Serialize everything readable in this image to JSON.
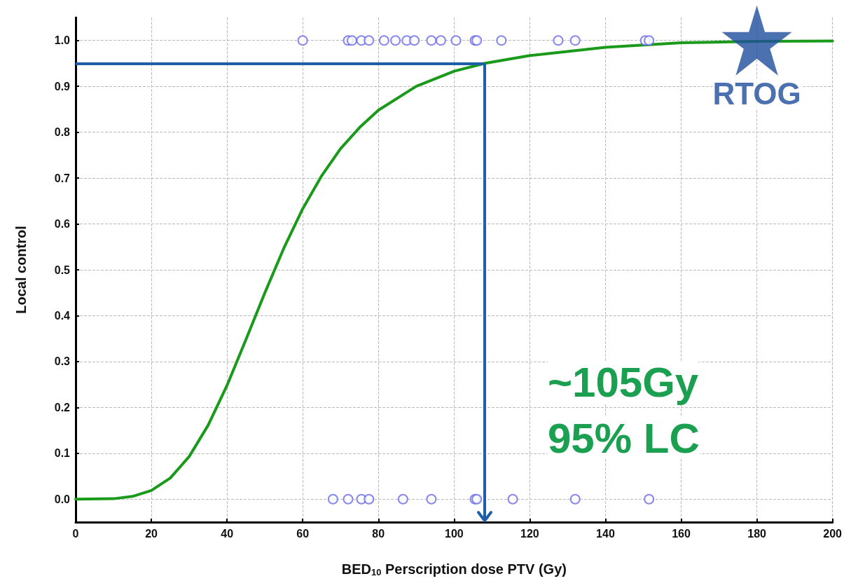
{
  "chart_data": {
    "type": "line",
    "xlabel": "BED$_{10}$ Perscription dose PTV (Gy)",
    "ylabel": "Local control",
    "xlim": [
      0,
      200
    ],
    "xticks": [
      0,
      20,
      40,
      60,
      80,
      100,
      120,
      140,
      160,
      180,
      200
    ],
    "ylim": [
      -0.05,
      1.05
    ],
    "yticks": [
      {
        "value": 0,
        "label": "0.0"
      },
      0.1,
      0.2,
      0.3,
      0.4,
      0.5,
      0.6,
      0.7,
      0.8,
      0.9,
      {
        "value": 1,
        "label": "1.0"
      }
    ],
    "grid": true,
    "legend": false,
    "series": [
      {
        "color": "#1a9a1a",
        "marker": "none",
        "line_style": "solid",
        "x": [
          0,
          10,
          15,
          20,
          25,
          30,
          35,
          40,
          45,
          50,
          55,
          60,
          65,
          70,
          75,
          80,
          90,
          100,
          108,
          120,
          140,
          160,
          180,
          200
        ],
        "values": [
          0,
          0.001,
          0.006,
          0.019,
          0.046,
          0.093,
          0.161,
          0.248,
          0.348,
          0.45,
          0.547,
          0.633,
          0.705,
          0.764,
          0.81,
          0.848,
          0.9,
          0.933,
          0.95,
          0.967,
          0.985,
          0.995,
          0.998,
          0.999
        ]
      },
      {
        "type": "scatter",
        "color": "#6a6ae8",
        "marker": "circle",
        "x": [
          60,
          72,
          73,
          75.5,
          77.5,
          81.5,
          84.5,
          87.5,
          89.5,
          94,
          96.5,
          100.5,
          105.5,
          106,
          112.5,
          127.5,
          132,
          150.5,
          151.5,
          68,
          72,
          75.5,
          77.5,
          86.5,
          94,
          105.5,
          106,
          115.5,
          132,
          151.5
        ],
        "values": [
          1,
          1,
          1,
          1,
          1,
          1,
          1,
          1,
          1,
          1,
          1,
          1,
          1,
          1,
          1,
          1,
          1,
          1,
          1,
          0,
          0,
          0,
          0,
          0,
          0,
          0,
          0,
          0,
          0,
          0
        ]
      },
      {
        "type": "scatter",
        "name": "RTOG",
        "color": "#1f4e9c",
        "marker": "star",
        "x": [
          180
        ],
        "values": [
          1
        ]
      }
    ],
    "ref_lines": [
      {
        "axis": "y",
        "value": 0.95,
        "color": "#1f5fa8"
      },
      {
        "axis": "x",
        "value": 108,
        "color": "#1f5fa8"
      }
    ],
    "annotations": [
      "~105Gy",
      "95% LC"
    ]
  }
}
